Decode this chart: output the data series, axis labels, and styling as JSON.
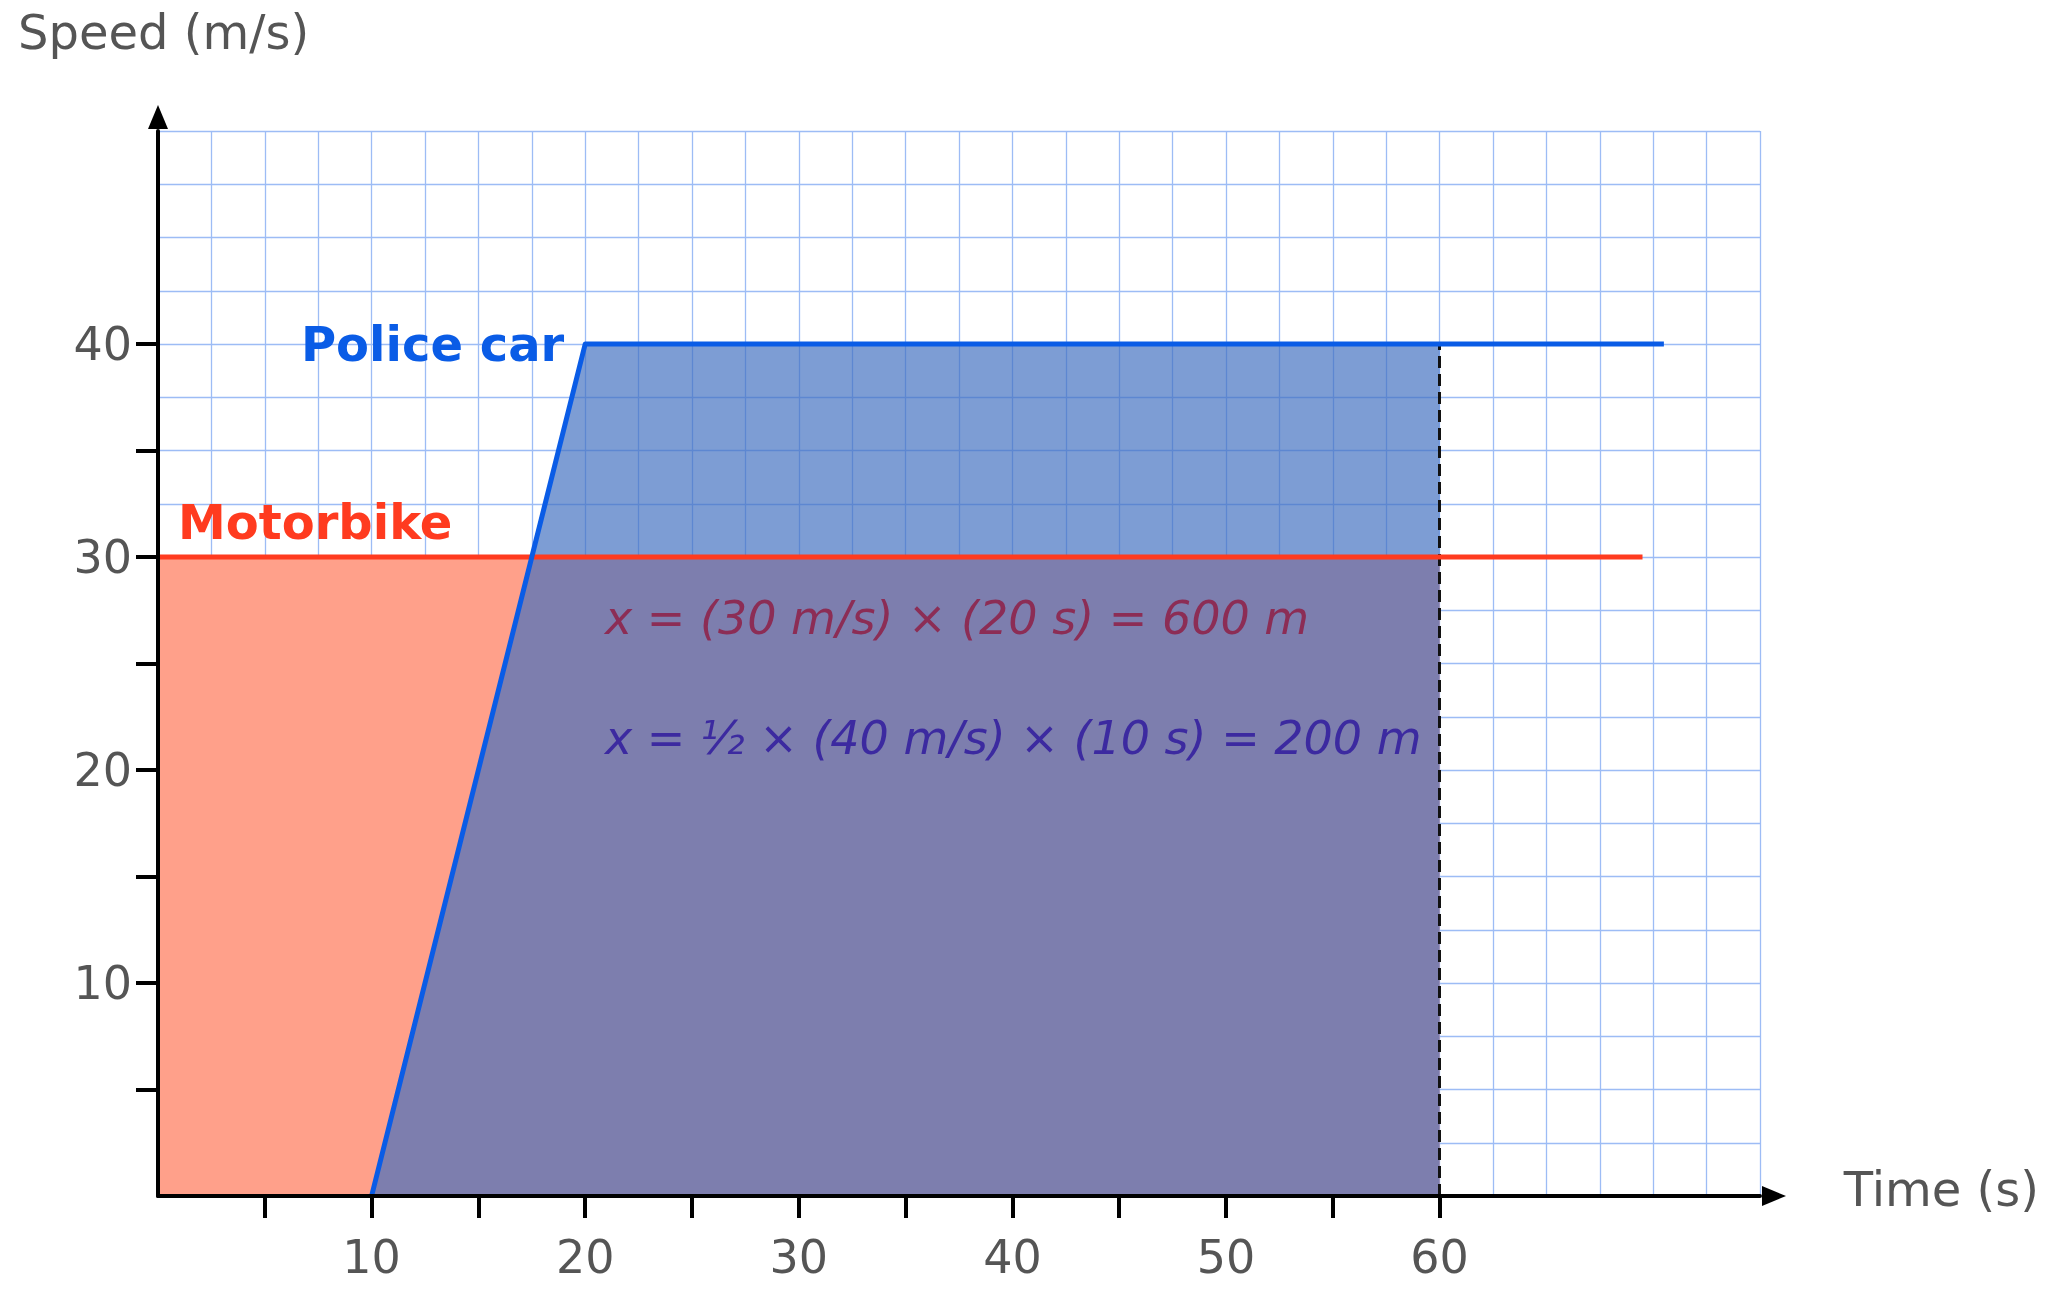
{
  "chart_data": {
    "type": "line",
    "xlabel": "Time (s)",
    "ylabel": "Speed (m/s)",
    "xlim": [
      0,
      75
    ],
    "ylim": [
      0,
      50
    ],
    "xticks": [
      {
        "value": 5,
        "label": null
      },
      10,
      {
        "value": 15,
        "label": null
      },
      20,
      {
        "value": 25,
        "label": null
      },
      30,
      {
        "value": 35,
        "label": null
      },
      40,
      {
        "value": 45,
        "label": null
      },
      50,
      {
        "value": 55,
        "label": null
      },
      60
    ],
    "yticks": [
      {
        "value": 5,
        "label": null
      },
      10,
      {
        "value": 15,
        "label": null
      },
      20,
      {
        "value": 25,
        "label": null
      },
      30,
      {
        "value": 35,
        "label": null
      },
      40
    ],
    "grid": true,
    "series": [
      {
        "type": "area",
        "color": "#ffa08a",
        "x": [
          0,
          60
        ],
        "values": [
          30,
          30
        ]
      },
      {
        "type": "area",
        "color": "#3f6fc0",
        "x": [
          10,
          20,
          60
        ],
        "values": [
          0,
          40,
          40
        ]
      },
      {
        "name": "Motorbike",
        "color": "#ff3b1f",
        "x": [
          0,
          69.5
        ],
        "values": [
          30,
          30
        ]
      },
      {
        "name": "Police car",
        "color": "#0a5ce6",
        "x": [
          10,
          20,
          70.5
        ],
        "values": [
          0,
          40,
          40
        ]
      }
    ],
    "ref_lines": [
      {
        "axis": "x",
        "value": 60,
        "color": "#111111",
        "line_style": "dashed"
      }
    ],
    "annotations": [
      "x = (30 m/s) × (20 s) = 600 m",
      "x = ½ × (40 m/s) × (10 s) = 200 m"
    ]
  }
}
